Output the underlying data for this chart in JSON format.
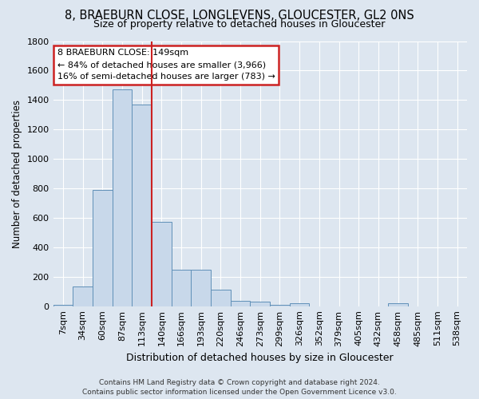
{
  "title1": "8, BRAEBURN CLOSE, LONGLEVENS, GLOUCESTER, GL2 0NS",
  "title2": "Size of property relative to detached houses in Gloucester",
  "xlabel": "Distribution of detached houses by size in Gloucester",
  "ylabel": "Number of detached properties",
  "bar_labels": [
    "7sqm",
    "34sqm",
    "60sqm",
    "87sqm",
    "113sqm",
    "140sqm",
    "166sqm",
    "193sqm",
    "220sqm",
    "246sqm",
    "273sqm",
    "299sqm",
    "326sqm",
    "352sqm",
    "379sqm",
    "405sqm",
    "432sqm",
    "458sqm",
    "485sqm",
    "511sqm",
    "538sqm"
  ],
  "bar_heights": [
    10,
    135,
    790,
    1470,
    1370,
    575,
    245,
    245,
    110,
    35,
    30,
    10,
    20,
    0,
    0,
    0,
    0,
    20,
    0,
    0,
    0
  ],
  "bar_color": "#c8d8ea",
  "bar_edge_color": "#6090b8",
  "bg_color": "#dde6f0",
  "plot_bg_color": "#dde6f0",
  "grid_color": "#ffffff",
  "vline_pos": 5.0,
  "ylim": [
    0,
    1800
  ],
  "yticks": [
    0,
    200,
    400,
    600,
    800,
    1000,
    1200,
    1400,
    1600,
    1800
  ],
  "annotation_text": "8 BRAEBURN CLOSE: 149sqm\n← 84% of detached houses are smaller (3,966)\n16% of semi-detached houses are larger (783) →",
  "annotation_box_facecolor": "#ffffff",
  "annotation_box_edgecolor": "#cc2222",
  "footer1": "Contains HM Land Registry data © Crown copyright and database right 2024.",
  "footer2": "Contains public sector information licensed under the Open Government Licence v3.0.",
  "title1_fontsize": 10.5,
  "title2_fontsize": 9,
  "ylabel_fontsize": 8.5,
  "xlabel_fontsize": 9,
  "tick_fontsize": 8,
  "annot_fontsize": 8,
  "footer_fontsize": 6.5
}
